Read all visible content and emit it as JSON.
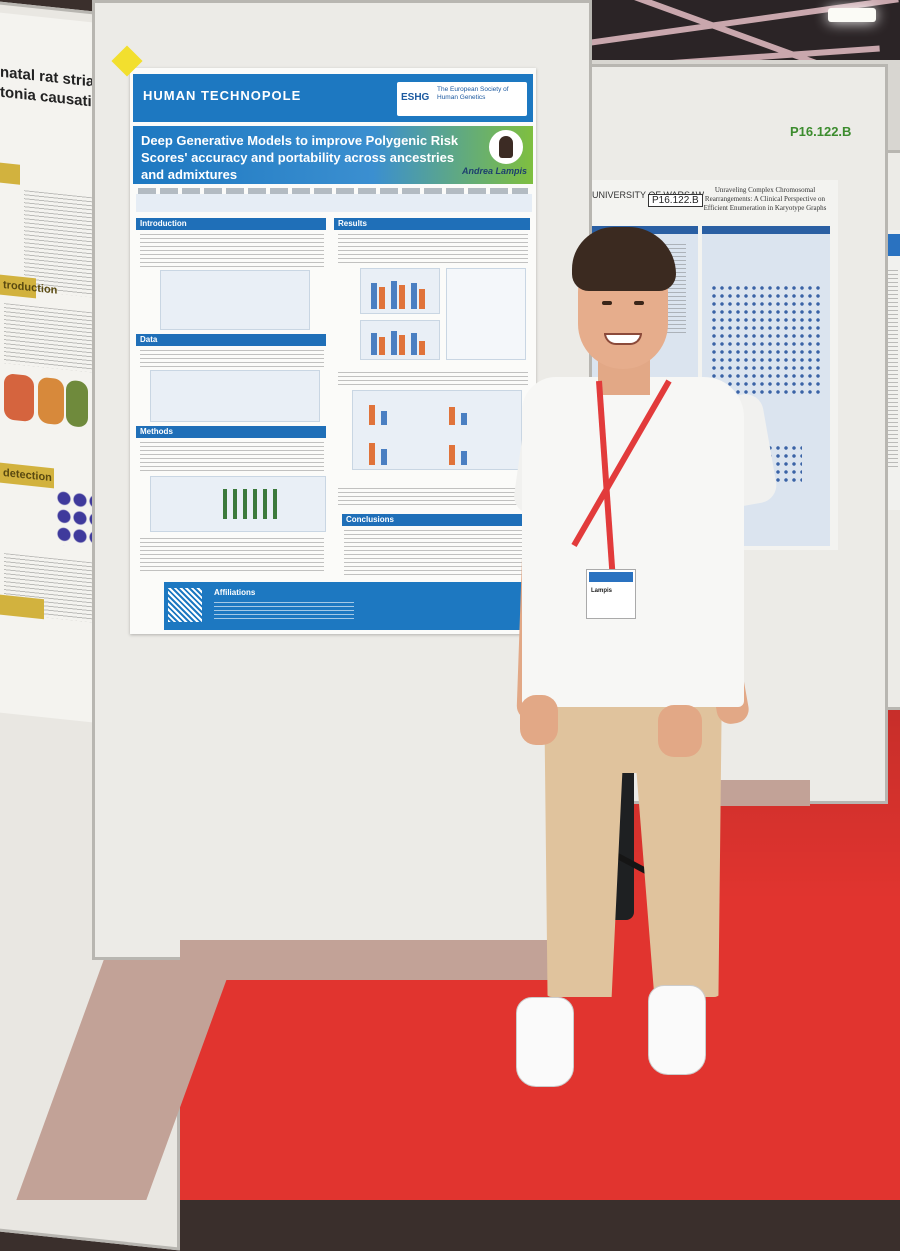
{
  "main_poster": {
    "logo": "HUMAN TECHNOPOLE",
    "logo_sub": "TECHNOPOLE",
    "society_tag": "ESHG",
    "society_name": "The European Society of Human Genetics",
    "title": "Deep Generative Models to improve Polygenic Risk Scores' accuracy and portability across ancestries and admixtures",
    "author": "Andrea Lampis",
    "sections": {
      "introduction": "Introduction",
      "results": "Results",
      "data": "Data",
      "methods": "Methods",
      "conclusions": "Conclusions",
      "affiliations": "Affiliations"
    }
  },
  "right_poster": {
    "board_code": "P16.122.B",
    "poster_code": "P16.122.B",
    "university": "UNIVERSITY OF WARSAW",
    "title": "Unraveling Complex Chromosomal Rearrangements: A Clinical Perspective on Efficient Enumeration in Karyotype Graphs"
  },
  "left_poster": {
    "title_fragment": "natal rat striatum tonia causative",
    "section_1": "troduction",
    "section_2": "detection"
  },
  "badge": {
    "name": "Lampis"
  },
  "colors": {
    "poster_blue": "#1d78c1",
    "poster_green": "#7fbf3f",
    "floor_red": "#e1342f",
    "lanyard_red": "#e23b3b"
  }
}
